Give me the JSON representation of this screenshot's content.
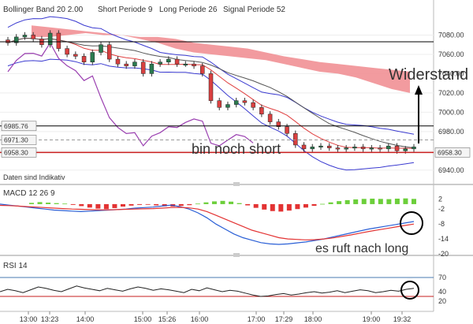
{
  "header": {
    "bollinger": "Bollinger Band  20  2.00",
    "short": "Short Periode  9",
    "long": "Long Periode  26",
    "signal": "Signal Periode  52"
  },
  "annotations": {
    "widerstand": "Widerstand",
    "bin_noch_short": "bin noch short",
    "es_ruft": "es ruft nach long",
    "daten": "Daten sind Indikativ"
  },
  "macd": {
    "title": "MACD  12  26  9"
  },
  "rsi": {
    "title": "RSI  14"
  },
  "colors": {
    "cloud": "#f08a8e",
    "candle_up": "#2a7a4f",
    "candle_down": "#d94040",
    "bollinger": "#3a3ad0",
    "ma_dark": "#555555",
    "purple": "#9a3fb0",
    "macd_pos": "#6ccf3a",
    "macd_neg": "#e33333",
    "macd_line": "#2a5fd6",
    "signal_line": "#e33333",
    "level_line": "#c71c1c"
  },
  "chart_data": [
    {
      "type": "line",
      "panel": "price",
      "xlabel": "",
      "ylabel": "",
      "ylim": [
        6930,
        7100
      ],
      "ytick_labels": [
        "7080.00",
        "7060.00",
        "7040.00",
        "7020.00",
        "7000.00",
        "6980.00",
        "6960.00",
        "6940.00"
      ],
      "yticks": [
        7080,
        7060,
        7040,
        7020,
        7000,
        6980,
        6960,
        6940
      ],
      "x_tick_labels": [
        "13:00",
        "13:23",
        "14:00",
        "15:00",
        "15:26",
        "16:00",
        "17:00",
        "17:29",
        "18:00",
        "19:00",
        "19:32"
      ],
      "price_labels": [
        {
          "text": "6985.76",
          "value": 6985.76
        },
        {
          "text": "6971.30",
          "value": 6971.3
        },
        {
          "text": "6958.30",
          "value": 6958.3
        },
        {
          "text": "6958.30",
          "value": 6958.3,
          "side": "right"
        }
      ],
      "candles_close": [
        7072,
        7078,
        7080,
        7076,
        7070,
        7082,
        7066,
        7060,
        7058,
        7052,
        7062,
        7070,
        7055,
        7050,
        7048,
        7052,
        7040,
        7050,
        7052,
        7055,
        7050,
        7050,
        7048,
        7040,
        7012,
        7005,
        7008,
        7012,
        7010,
        7005,
        6998,
        6990,
        6985,
        6978,
        6966,
        6962,
        6964,
        6965,
        6963,
        6962,
        6963,
        6964,
        6962,
        6963,
        6962,
        6965,
        6960,
        6962,
        6964
      ]
    },
    {
      "type": "bar",
      "panel": "macd",
      "title": "MACD  12  26  9",
      "ylim": [
        -20,
        6
      ],
      "ytick_labels": [
        "2",
        "-2",
        "-8",
        "-14",
        "-20"
      ],
      "yticks": [
        2,
        -2,
        -8,
        -14,
        -20
      ],
      "histogram": [
        0.5,
        0.8,
        0.6,
        0.4,
        0.2,
        -0.3,
        -0.8,
        -1.4,
        -1.8,
        -2.0,
        -1.6,
        -1.0,
        -0.6,
        -0.3,
        -0.2,
        -0.5,
        -0.9,
        -1.0,
        -0.7,
        -0.4,
        0.2,
        0.7,
        1.1,
        1.3,
        1.0,
        0.4,
        -0.5,
        -1.5,
        -2.2,
        -2.8,
        -3.0,
        -2.6,
        -2.0,
        -1.4,
        -0.7,
        0.1,
        0.7,
        1.2,
        1.6,
        1.9,
        2.1,
        2.2,
        2.1,
        2.0,
        2.2,
        2.3,
        2.1
      ],
      "series": [
        {
          "values": [
            0.0,
            -0.4,
            -0.8,
            -1.2,
            -1.6,
            -2.0,
            -2.4,
            -2.6,
            -2.8,
            -3.0,
            -2.8,
            -2.6,
            -2.4,
            -2.2,
            -2.0,
            -1.6,
            -1.4,
            -1.2,
            -0.8,
            -0.4,
            -1.0,
            -2.0,
            -3.5,
            -5.5,
            -8.0,
            -10.0,
            -12.0,
            -13.5,
            -14.5,
            -15.5,
            -16.0,
            -16.2,
            -16.0,
            -15.6,
            -15.2,
            -14.6,
            -14.0,
            -13.2,
            -12.4,
            -11.6,
            -10.8,
            -10.0,
            -9.4,
            -8.8,
            -8.2,
            -7.6,
            -7.0
          ]
        },
        {
          "values": [
            -0.5,
            -0.6,
            -0.8,
            -1.0,
            -1.2,
            -1.4,
            -1.6,
            -1.8,
            -2.0,
            -2.1,
            -2.2,
            -2.3,
            -2.3,
            -2.2,
            -2.1,
            -2.0,
            -1.9,
            -1.8,
            -1.6,
            -1.4,
            -1.3,
            -1.5,
            -2.0,
            -3.0,
            -4.5,
            -6.0,
            -7.5,
            -9.0,
            -10.5,
            -11.5,
            -12.5,
            -13.5,
            -14.0,
            -14.2,
            -14.4,
            -14.3,
            -14.0,
            -13.6,
            -13.0,
            -12.4,
            -11.7,
            -11.0,
            -10.4,
            -9.8,
            -9.2,
            -8.6,
            -8.0
          ]
        }
      ]
    },
    {
      "type": "line",
      "panel": "rsi",
      "title": "RSI  14",
      "ylim": [
        0,
        100
      ],
      "ytick_labels": [
        "70",
        "40",
        "20"
      ],
      "yticks": [
        70,
        40,
        20
      ],
      "reference_levels": [
        70,
        30
      ],
      "series": [
        {
          "values": [
            40,
            45,
            42,
            38,
            44,
            50,
            47,
            43,
            40,
            46,
            52,
            48,
            45,
            42,
            47,
            44,
            41,
            46,
            50,
            47,
            43,
            46,
            44,
            41,
            38,
            45,
            42,
            48,
            44,
            40,
            43,
            41,
            37,
            33,
            30,
            31,
            34,
            36,
            33,
            35,
            38,
            40,
            37,
            39,
            42,
            38,
            41,
            44,
            42,
            38,
            40,
            43,
            41,
            45,
            47
          ]
        }
      ]
    }
  ]
}
